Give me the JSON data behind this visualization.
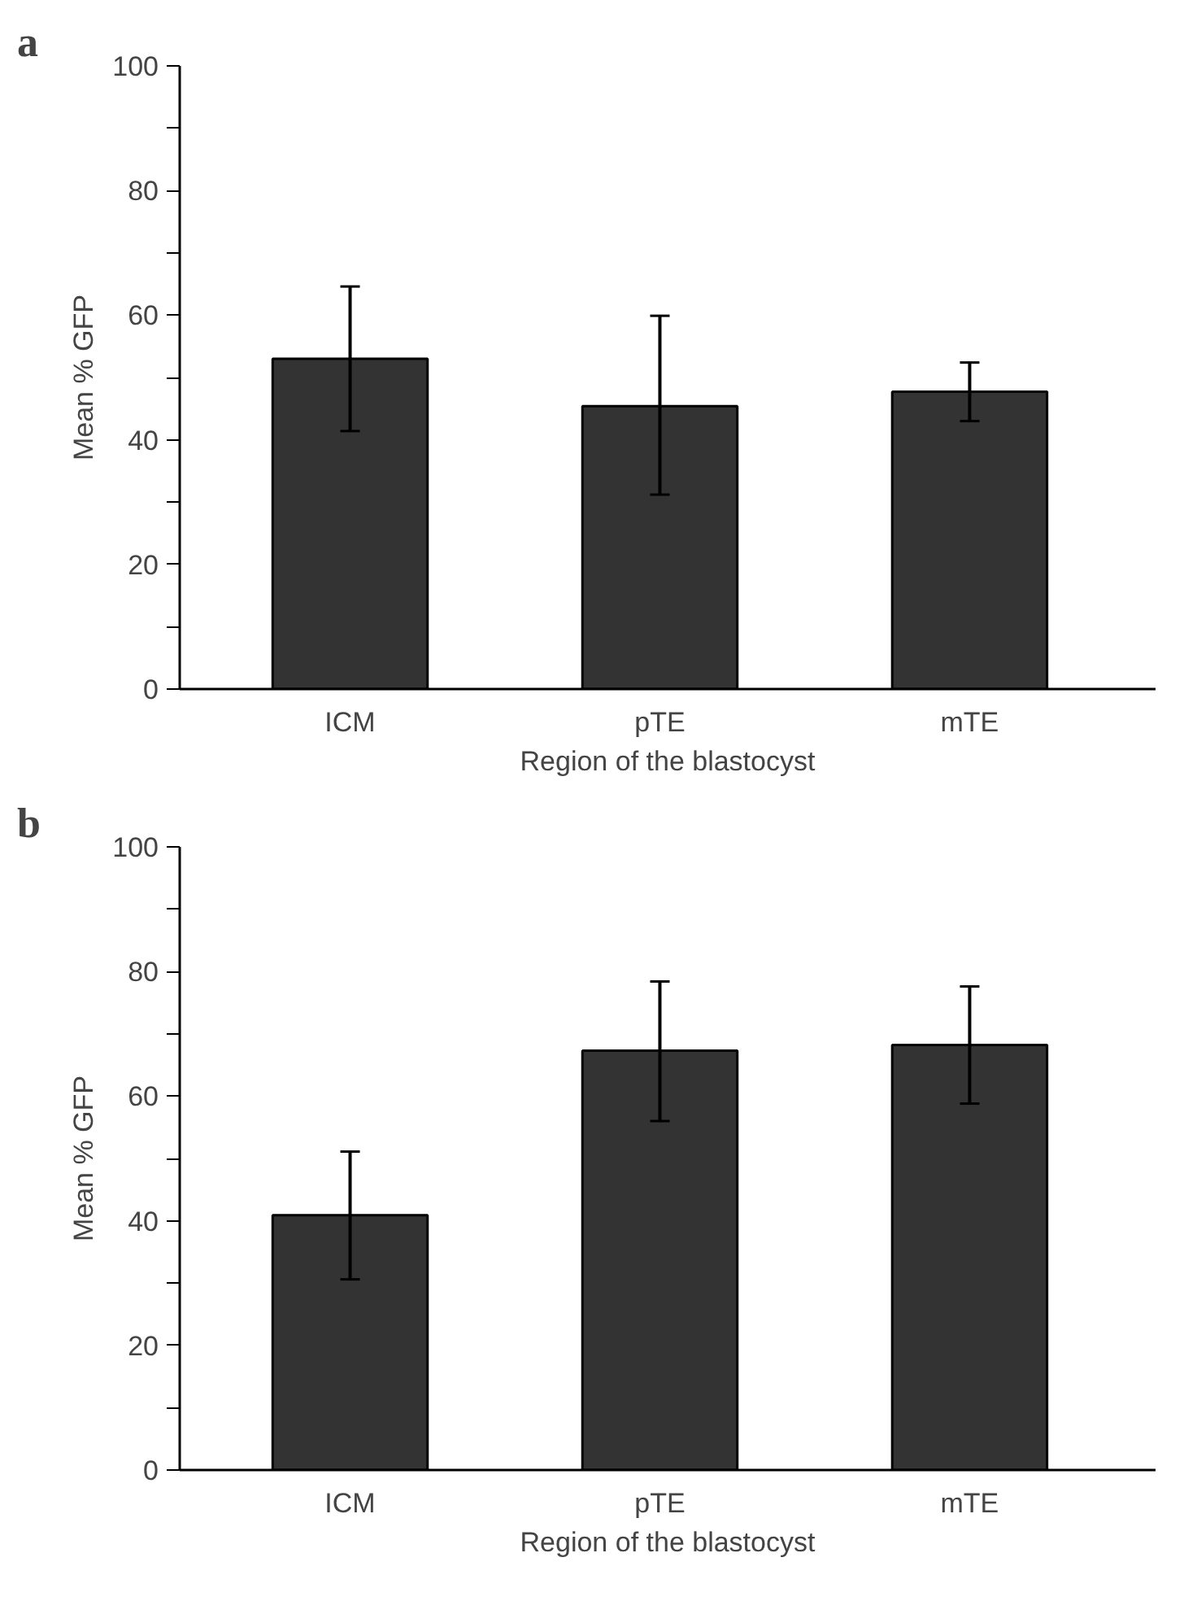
{
  "chart_data": [
    {
      "type": "bar",
      "annotations": [
        "a"
      ],
      "xlabel": "Region of the blastocyst",
      "ylabel": "Mean % GFP",
      "categories": [
        "ICM",
        "pTE",
        "mTE"
      ],
      "color": "#333333",
      "values": [
        53.0,
        45.4,
        47.7
      ],
      "errors": [
        [
          41.4,
          64.6
        ],
        [
          31.2,
          59.9
        ],
        [
          43.0,
          52.4
        ]
      ],
      "ylim": [
        0,
        100
      ],
      "yticks": [
        0,
        {
          "value": 10,
          "label": null
        },
        20,
        {
          "value": 30,
          "label": null
        },
        40,
        {
          "value": 50,
          "label": null
        },
        60,
        {
          "value": 70,
          "label": null
        },
        80,
        {
          "value": 90,
          "label": null
        },
        100
      ],
      "grid": false
    },
    {
      "type": "bar",
      "annotations": [
        "b"
      ],
      "xlabel": "Region of the blastocyst",
      "ylabel": "Mean % GFP",
      "categories": [
        "ICM",
        "pTE",
        "mTE"
      ],
      "color": "#333333",
      "values": [
        40.9,
        67.3,
        68.2
      ],
      "errors": [
        [
          30.6,
          51.1
        ],
        [
          56.0,
          78.4
        ],
        [
          58.8,
          77.6
        ]
      ],
      "ylim": [
        0,
        100
      ],
      "yticks": [
        0,
        {
          "value": 10,
          "label": null
        },
        20,
        {
          "value": 30,
          "label": null
        },
        40,
        {
          "value": 50,
          "label": null
        },
        60,
        {
          "value": 70,
          "label": null
        },
        80,
        {
          "value": 90,
          "label": null
        },
        100
      ],
      "grid": false
    }
  ]
}
